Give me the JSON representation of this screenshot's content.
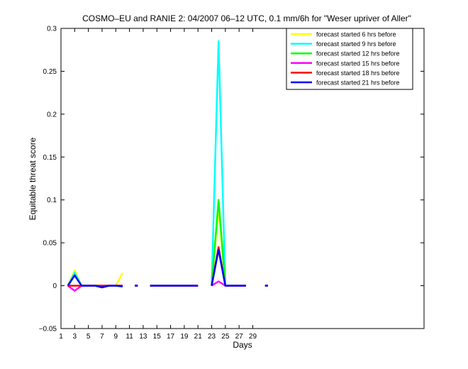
{
  "chart_data": {
    "type": "line",
    "title": "COSMO–EU and RANIE 2: 04/2007 06–12 UTC, 0.1 mm/6h for \"Weser upriver of Aller\"",
    "xlabel": "Days",
    "ylabel": "Equitable threat score",
    "xlim": [
      1,
      54
    ],
    "ylim": [
      -0.05,
      0.3
    ],
    "xticks": [
      "1",
      "3",
      "5",
      "7",
      "9",
      "11",
      "13",
      "15",
      "17",
      "19",
      "21",
      "23",
      "25",
      "27",
      "29"
    ],
    "xtick_values": [
      1,
      3,
      5,
      7,
      9,
      11,
      13,
      15,
      17,
      19,
      21,
      23,
      25,
      27,
      29
    ],
    "yticks": [
      "−0.05",
      "0",
      "0.05",
      "0.1",
      "0.15",
      "0.2",
      "0.25",
      "0.3"
    ],
    "ytick_values": [
      -0.05,
      0,
      0.05,
      0.1,
      0.15,
      0.2,
      0.25,
      0.3
    ],
    "grid": false,
    "legend_position": "top-right",
    "series": [
      {
        "name": "forecast started 6 hrs before",
        "color": "#ffff00",
        "x": [
          2,
          3,
          4,
          5,
          6,
          7,
          8,
          9,
          10,
          12,
          14,
          15,
          16,
          17,
          18,
          19,
          20,
          21,
          23,
          24,
          25,
          26,
          27,
          28,
          31
        ],
        "y": [
          0,
          0.018,
          0,
          0,
          0,
          0,
          0,
          0,
          0.015,
          0,
          0,
          0,
          0,
          0,
          0,
          0,
          0,
          0,
          0,
          0.09,
          0,
          0,
          0,
          0,
          0
        ]
      },
      {
        "name": "forecast started 9 hrs before",
        "color": "#00ffff",
        "x": [
          2,
          3,
          4,
          5,
          6,
          7,
          8,
          9,
          10,
          12,
          14,
          15,
          16,
          17,
          18,
          19,
          20,
          21,
          23,
          24,
          25,
          26,
          27,
          28,
          31
        ],
        "y": [
          0,
          0.015,
          0,
          0,
          0,
          -0.002,
          0,
          0,
          0,
          0,
          0,
          0,
          0,
          0,
          0,
          0,
          0,
          0,
          0,
          0.285,
          0,
          0,
          0,
          0,
          0
        ]
      },
      {
        "name": "forecast started 12 hrs before",
        "color": "#00ff00",
        "x": [
          2,
          3,
          4,
          5,
          6,
          7,
          8,
          9,
          10,
          12,
          14,
          15,
          16,
          17,
          18,
          19,
          20,
          21,
          23,
          24,
          25,
          26,
          27,
          28,
          31
        ],
        "y": [
          0,
          0.012,
          0,
          0,
          0,
          0,
          0,
          0,
          0,
          0,
          0,
          0,
          0,
          0,
          0,
          0,
          0,
          0,
          0,
          0.1,
          0,
          0,
          0,
          0,
          0
        ]
      },
      {
        "name": "forecast started 15 hrs before",
        "color": "#ff00ff",
        "x": [
          2,
          3,
          4,
          5,
          6,
          7,
          8,
          9,
          10,
          12,
          14,
          15,
          16,
          17,
          18,
          19,
          20,
          21,
          23,
          24,
          25,
          26,
          27,
          28,
          31
        ],
        "y": [
          0,
          -0.006,
          0,
          0,
          0,
          0,
          0,
          0,
          0,
          0,
          0,
          0,
          0,
          0,
          0,
          0,
          0,
          0,
          0,
          0.005,
          0,
          0,
          0,
          0,
          0
        ]
      },
      {
        "name": "forecast started 18 hrs before",
        "color": "#ff0000",
        "x": [
          2,
          3,
          4,
          5,
          6,
          7,
          8,
          9,
          10,
          12,
          14,
          15,
          16,
          17,
          18,
          19,
          20,
          21,
          23,
          24,
          25,
          26,
          27,
          28,
          31
        ],
        "y": [
          0,
          0,
          0,
          0,
          0,
          0,
          0,
          0,
          0,
          0,
          0,
          0,
          0,
          0,
          0,
          0,
          0,
          0,
          0,
          0.045,
          0,
          0,
          0,
          0,
          0
        ]
      },
      {
        "name": "forecast started 21 hrs before",
        "color": "#0000ff",
        "x": [
          2,
          3,
          4,
          5,
          6,
          7,
          8,
          9,
          10,
          12,
          14,
          15,
          16,
          17,
          18,
          19,
          20,
          21,
          23,
          24,
          25,
          26,
          27,
          28,
          31
        ],
        "y": [
          0,
          0.012,
          0,
          0,
          0,
          -0.002,
          0,
          0,
          -0.001,
          0,
          0,
          0,
          0,
          0,
          0,
          0,
          0,
          0,
          0,
          0.042,
          0,
          0,
          0,
          0,
          0
        ]
      }
    ]
  }
}
